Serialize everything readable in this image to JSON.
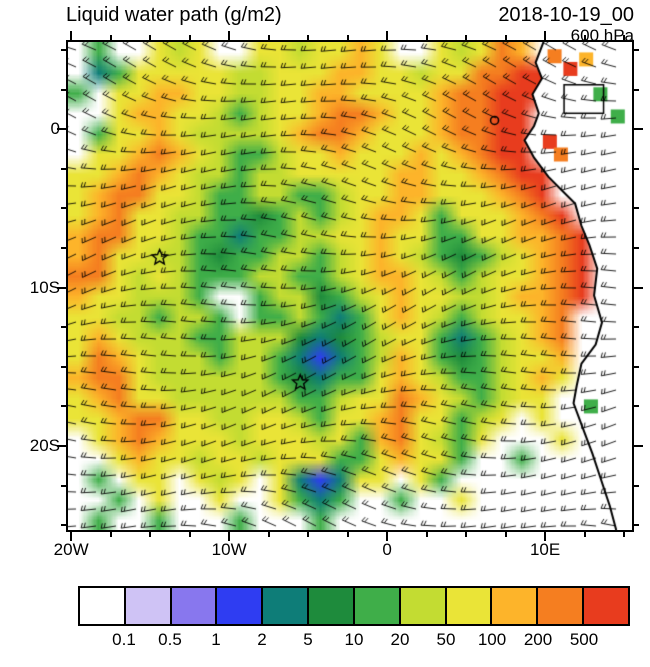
{
  "header": {
    "title": "Liquid water path (g/m2)",
    "datetime": "2018-10-19_00",
    "level": "600 hPa"
  },
  "axes": {
    "y_ticks": [
      {
        "label": "0",
        "lat": 0
      },
      {
        "label": "10S",
        "lat": -10
      },
      {
        "label": "20S",
        "lat": -20
      }
    ],
    "x_ticks": [
      {
        "label": "20W",
        "lon": -20
      },
      {
        "label": "10W",
        "lon": -10
      },
      {
        "label": "0",
        "lon": 0
      },
      {
        "label": "10E",
        "lon": 10
      }
    ]
  },
  "colorbar": {
    "labels": [
      "0.1",
      "0.5",
      "1",
      "2",
      "5",
      "10",
      "20",
      "50",
      "100",
      "200",
      "500"
    ]
  },
  "chart_data": {
    "type": "heatmap",
    "title": "Liquid water path (g/m2)",
    "datetime": "2018-10-19_00",
    "pressure_level": "600 hPa",
    "units": "g/m2",
    "lon_range": [
      -20.2,
      15.5
    ],
    "lat_range": [
      -25.3,
      5.5
    ],
    "levels": [
      0.1,
      0.5,
      1,
      2,
      5,
      10,
      20,
      50,
      100,
      200,
      500
    ],
    "level_colors": [
      "#ffffff",
      "#cfc3f5",
      "#8877ee",
      "#2f3df2",
      "#0e7d78",
      "#1e8b3c",
      "#3fae49",
      "#c3dc32",
      "#eae437",
      "#fdb42a",
      "#f57e20",
      "#e83c1e"
    ],
    "grid_code_map": {
      "W": 0,
      "L": 1,
      "P": 2,
      "B": 3,
      "T": 4,
      "D": 5,
      "G": 6,
      "Y": 7,
      "X": 8,
      "A": 9,
      "O": 10,
      "R": 11
    },
    "grid_note": "approximate 28x24 downsample of the filled-contour LWP field; letters index level_colors",
    "grid_rows": [
      "WGWWXYXWWXXYXXAXWWXYXOAWWORW",
      "WTGXXXXXYYXXXAAXXYXXOORRWWRW",
      "GWXXAAXXYYXXAAXXXXAOORRRWGWW",
      "WWXAAXXYGYXXAOOAXXAOORRWWWWW",
      "WGXXAXYYYYXAOOAXXXAOORRWWGWW",
      "WXXAOAXYGGYXXAXXXAXAORRWWWWW",
      "XXAOAXYYGYYXXXXXAAXXAORRWWWW",
      "XAOOXXYGGYYGGYXXAAXXXAORWWWW",
      "XAOXXYYGGDGYGYXAAXGXXXAORWWW",
      "AOOXXYGGTGGYYXXAXXGGXXAAORWW",
      "AOXXYYGDGGYYGYXAXYGDGYXAORWW",
      "OOXYXYGGGYYGGYXAAXYGYXXAORWW",
      "AXXYYYGWWGYYDGYXAXXYYXAAORWW",
      "XXYYGYYGWGGYGTGXAXYGYXXAOWWW",
      "XAXYYYGGYYYDTDGYXXGTGYXAOWWW",
      "XOAXYYYGYYGTBTGYAXGDGYXXAWWW",
      "AOOXYYYYYYGDTGGXAXYGGYXAXWWW",
      "XAOXXYYYYYYGGYXXOAXYGYXXWWWW",
      "XXAOOXXYYXXYGXXAOXXGYXWXWWWW",
      "WXAOAXXXYXXXYXGAOXYGXWWWXWWW",
      "WWXAXXYXXYXXXGGXAXXGWWGWWWWW",
      "WGWXXWXYXWXTBTXXWXGWWWWWWWWW",
      "WWGWXWWXWWXGTGWWGWWXWWWWWWWW",
      "WGWWGWWWGWWWGWWWWWWWWWWWWWWW"
    ],
    "wind_overlay": {
      "type": "wind-barbs",
      "dx": 20,
      "dy": 17,
      "len": 15,
      "tick_len": 5
    },
    "markers": [
      {
        "symbol": "star",
        "lon": -14.4,
        "lat": -8.1
      },
      {
        "symbol": "star",
        "lon": -5.5,
        "lat": -16.0
      }
    ],
    "island_marker": {
      "lon": 6.8,
      "lat": 0.55
    },
    "region_box": {
      "lon_min": 11.2,
      "lon_max": 13.7,
      "lat_min": 1.0,
      "lat_max": 2.8
    },
    "land_cells": [
      {
        "lon": 10.6,
        "lat": 4.6,
        "level": 10
      },
      {
        "lon": 11.6,
        "lat": 3.8,
        "level": 11
      },
      {
        "lon": 12.6,
        "lat": 4.4,
        "level": 9
      },
      {
        "lon": 10.3,
        "lat": -0.8,
        "level": 11
      },
      {
        "lon": 11.0,
        "lat": -1.6,
        "level": 10
      },
      {
        "lon": 13.5,
        "lat": 2.2,
        "level": 6
      },
      {
        "lon": 14.6,
        "lat": 0.8,
        "level": 6
      },
      {
        "lon": 12.9,
        "lat": -17.5,
        "level": 6
      }
    ],
    "coastline": [
      [
        9.9,
        5.5
      ],
      [
        9.4,
        4.2
      ],
      [
        9.8,
        3.2
      ],
      [
        9.2,
        2.2
      ],
      [
        9.6,
        1.0
      ],
      [
        9.3,
        0.2
      ],
      [
        8.7,
        -0.7
      ],
      [
        9.3,
        -1.8
      ],
      [
        10.2,
        -3.0
      ],
      [
        11.1,
        -3.9
      ],
      [
        11.9,
        -4.7
      ],
      [
        12.3,
        -6.1
      ],
      [
        12.8,
        -7.3
      ],
      [
        13.3,
        -8.8
      ],
      [
        13.1,
        -10.5
      ],
      [
        13.6,
        -12.2
      ],
      [
        13.2,
        -13.6
      ],
      [
        12.3,
        -14.8
      ],
      [
        12.0,
        -16.2
      ],
      [
        11.8,
        -17.3
      ],
      [
        12.4,
        -18.9
      ],
      [
        13.0,
        -20.5
      ],
      [
        13.5,
        -22.0
      ],
      [
        14.1,
        -23.8
      ],
      [
        14.5,
        -25.3
      ]
    ]
  }
}
